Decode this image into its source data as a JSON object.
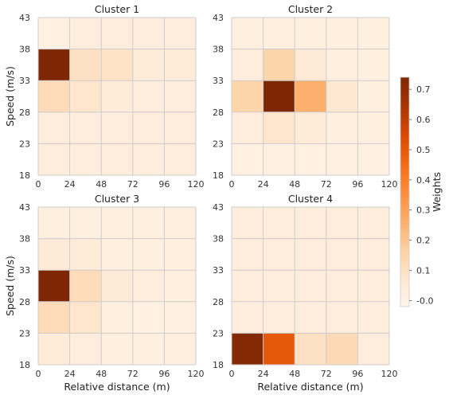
{
  "chart_data": {
    "type": "heatmap",
    "colorbar": {
      "label": "Weights",
      "ticks": [
        "-0.0",
        "0.1",
        "0.2",
        "0.3",
        "0.4",
        "0.5",
        "0.6",
        "0.7"
      ],
      "tick_values": [
        0,
        0.1,
        0.2,
        0.3,
        0.4,
        0.5,
        0.6,
        0.7
      ],
      "vmin": -0.02,
      "vmax": 0.74,
      "colormap": "Oranges"
    },
    "x_ticks": [
      "0",
      "24",
      "48",
      "72",
      "96",
      "120"
    ],
    "y_ticks": [
      "18",
      "23",
      "28",
      "33",
      "38",
      "43"
    ],
    "x_range": [
      0,
      120
    ],
    "y_range": [
      18,
      43
    ],
    "xlabel": "Relative distance (m)",
    "ylabel": "Speed (m/s)",
    "grid": true,
    "panels": [
      {
        "title": "Cluster 1",
        "values": [
          [
            0.01,
            0.03,
            0.03,
            0.03,
            0.03
          ],
          [
            0.74,
            0.1,
            0.09,
            0.04,
            0.04
          ],
          [
            0.12,
            0.08,
            0.04,
            0.03,
            0.03
          ],
          [
            0.03,
            0.03,
            0.03,
            0.03,
            0.03
          ],
          [
            0.03,
            0.03,
            0.03,
            0.03,
            0.03
          ]
        ]
      },
      {
        "title": "Cluster 2",
        "values": [
          [
            0.02,
            0.02,
            0.02,
            0.02,
            0.02
          ],
          [
            0.03,
            0.15,
            0.05,
            0.02,
            0.02
          ],
          [
            0.15,
            0.74,
            0.26,
            0.06,
            0.02
          ],
          [
            0.03,
            0.08,
            0.04,
            0.02,
            0.02
          ],
          [
            0.01,
            0.01,
            0.01,
            0.01,
            0.01
          ]
        ]
      },
      {
        "title": "Cluster 3",
        "values": [
          [
            0.02,
            0.02,
            0.02,
            0.02,
            0.02
          ],
          [
            0.05,
            0.04,
            0.02,
            0.02,
            0.02
          ],
          [
            0.74,
            0.12,
            0.05,
            0.03,
            0.02
          ],
          [
            0.12,
            0.08,
            0.02,
            0.01,
            0.01
          ],
          [
            0.04,
            0.03,
            0.02,
            0.02,
            0.02
          ]
        ]
      },
      {
        "title": "Cluster 4",
        "values": [
          [
            0.03,
            0.03,
            0.03,
            0.03,
            0.03
          ],
          [
            0.03,
            0.03,
            0.03,
            0.03,
            0.03
          ],
          [
            0.03,
            0.03,
            0.03,
            0.03,
            0.03
          ],
          [
            0.03,
            0.03,
            0.03,
            0.03,
            0.03
          ],
          [
            0.73,
            0.5,
            0.1,
            0.13,
            0.03
          ]
        ]
      }
    ]
  }
}
